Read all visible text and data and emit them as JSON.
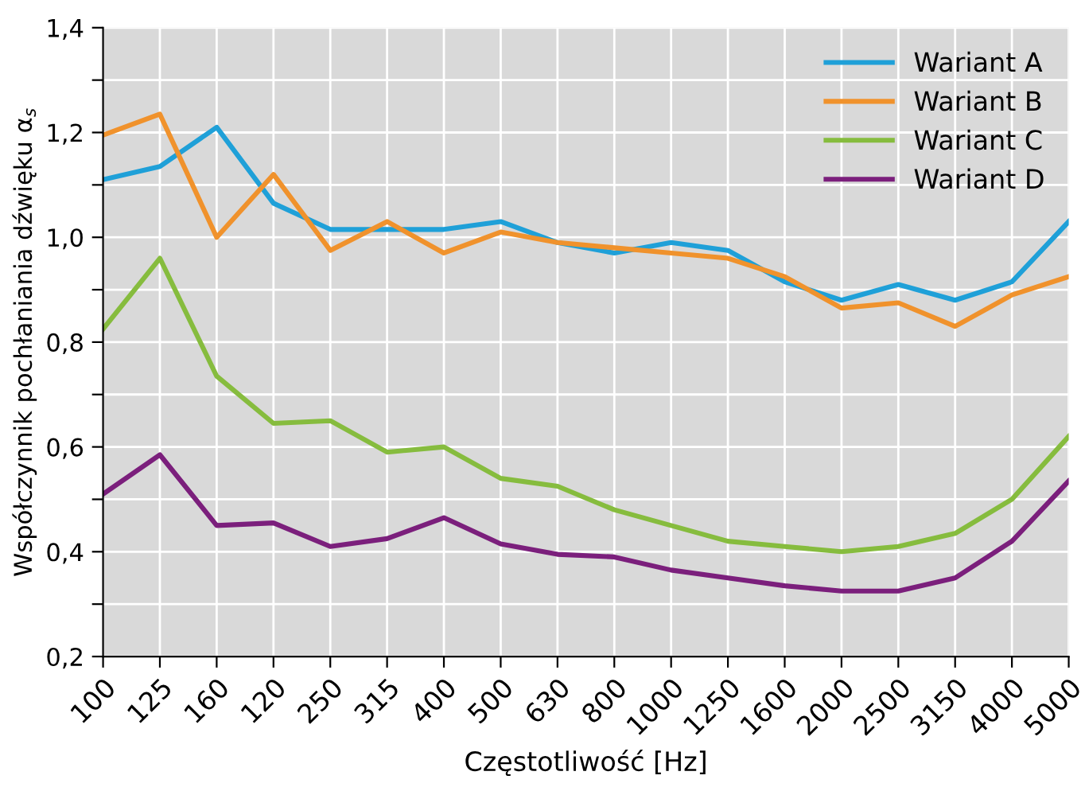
{
  "chart_data": {
    "type": "line",
    "xlabel": "Częstotliwość [Hz]",
    "ylabel": "Współczynnik pochłaniania dźwięku α$_{s}$",
    "categories": [
      "100",
      "125",
      "160",
      "120",
      "250",
      "315",
      "400",
      "500",
      "630",
      "800",
      "1000",
      "1250",
      "1600",
      "2000",
      "2500",
      "3150",
      "4000",
      "5000"
    ],
    "series": [
      {
        "name": "Wariant A",
        "color": "#1fa0d8",
        "values": [
          1.11,
          1.135,
          1.21,
          1.065,
          1.015,
          1.015,
          1.015,
          1.03,
          0.99,
          0.97,
          0.99,
          0.975,
          0.915,
          0.88,
          0.91,
          0.88,
          0.915,
          1.03
        ]
      },
      {
        "name": "Wariant B",
        "color": "#f0922c",
        "values": [
          1.195,
          1.235,
          1.0,
          1.12,
          0.975,
          1.03,
          0.97,
          1.01,
          0.99,
          0.98,
          0.97,
          0.96,
          0.925,
          0.865,
          0.875,
          0.83,
          0.89,
          0.925
        ]
      },
      {
        "name": "Wariant C",
        "color": "#86bc3e",
        "values": [
          0.825,
          0.96,
          0.735,
          0.645,
          0.65,
          0.59,
          0.6,
          0.54,
          0.525,
          0.48,
          0.45,
          0.42,
          0.41,
          0.4,
          0.41,
          0.435,
          0.5,
          0.62
        ]
      },
      {
        "name": "Wariant D",
        "color": "#7b1f7c",
        "values": [
          0.51,
          0.585,
          0.45,
          0.455,
          0.41,
          0.425,
          0.465,
          0.415,
          0.395,
          0.39,
          0.365,
          0.35,
          0.335,
          0.325,
          0.325,
          0.35,
          0.42,
          0.535
        ]
      }
    ],
    "ylim": [
      0.2,
      1.4
    ],
    "yticks": [
      {
        "value": 0.2,
        "label": "0,2"
      },
      {
        "value": 0.3,
        "label": null
      },
      {
        "value": 0.4,
        "label": "0,4"
      },
      {
        "value": 0.5,
        "label": null
      },
      {
        "value": 0.6,
        "label": "0,6"
      },
      {
        "value": 0.7,
        "label": null
      },
      {
        "value": 0.8,
        "label": "0,8"
      },
      {
        "value": 0.9,
        "label": null
      },
      {
        "value": 1.0,
        "label": "1,0"
      },
      {
        "value": 1.1,
        "label": null
      },
      {
        "value": 1.2,
        "label": "1,2"
      },
      {
        "value": 1.3,
        "label": null
      },
      {
        "value": 1.4,
        "label": "1,4"
      }
    ],
    "grid": true,
    "legend": "top right",
    "marker": "none",
    "line_style": "solid"
  }
}
